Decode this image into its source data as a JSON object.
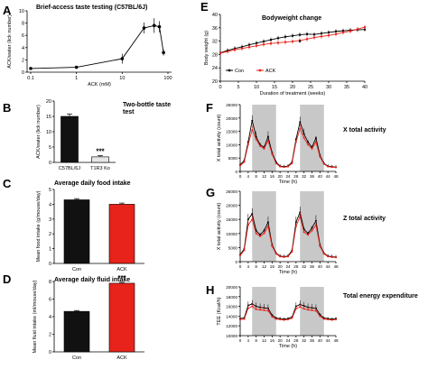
{
  "colors": {
    "con": "#000000",
    "ack": "#e8231b",
    "shade": "#c8c8c8",
    "bar_black": "#111111",
    "bar_red": "#e8231b"
  },
  "panels": {
    "A": {
      "letter": "A"
    },
    "B": {
      "letter": "B"
    },
    "C": {
      "letter": "C"
    },
    "D": {
      "letter": "D"
    },
    "E": {
      "letter": "E"
    },
    "F": {
      "letter": "F"
    },
    "G": {
      "letter": "G"
    },
    "H": {
      "letter": "H"
    }
  },
  "chart_data": [
    {
      "id": "A",
      "type": "line",
      "title": "Brief-access taste testing (C57BL/6J)",
      "xlabel": "ACK (mM)",
      "ylabel": "ACK/water (lick number)",
      "xscale": "log",
      "xticks": [
        "0.1",
        "1",
        "10",
        "100"
      ],
      "ylim": [
        0,
        10
      ],
      "yticks": [
        "0",
        "2",
        "4",
        "6",
        "8",
        "10"
      ],
      "x": [
        0.1,
        1,
        10,
        30,
        50,
        65,
        80
      ],
      "y": [
        0.6,
        0.8,
        2.2,
        7.2,
        7.6,
        7.4,
        3.2
      ],
      "err": [
        0.15,
        0.2,
        0.8,
        0.9,
        1.2,
        0.9,
        0.5
      ]
    },
    {
      "id": "B",
      "type": "bar",
      "title": "Two-bottle taste test",
      "ylabel": "ACK/water (lick number)",
      "categories": [
        "C57BL/6J",
        "T1R3 Ko"
      ],
      "values": [
        15,
        1.8
      ],
      "err": [
        0.8,
        0.4
      ],
      "ylim": [
        0,
        20
      ],
      "yticks": [
        "0",
        "5",
        "10",
        "15",
        "20"
      ],
      "annotation": "***"
    },
    {
      "id": "C",
      "type": "bar",
      "title": "Average daily food intake",
      "ylabel": "Mean food intake (g/mouse/day)",
      "categories": [
        "Con",
        "ACK"
      ],
      "values": [
        4.3,
        4.0
      ],
      "err": [
        0.08,
        0.08
      ],
      "ylim": [
        0,
        5
      ],
      "yticks": [
        "0",
        "1",
        "2",
        "3",
        "4",
        "5"
      ]
    },
    {
      "id": "D",
      "type": "bar",
      "title": "Average daily fluid intake",
      "ylabel": "Mean fluid intake (ml/mouse/day)",
      "categories": [
        "Con",
        "ACK"
      ],
      "values": [
        4.6,
        7.8
      ],
      "err": [
        0.1,
        0.1
      ],
      "ylim": [
        0,
        8
      ],
      "yticks": [
        "0",
        "2",
        "4",
        "6",
        "8"
      ],
      "annotation": "***"
    },
    {
      "id": "E",
      "type": "line",
      "title": "Bodyweight change",
      "xlabel": "Duration of treatment (weeks)",
      "ylabel": "Body weight (g)",
      "xlim": [
        0,
        40
      ],
      "xticks": [
        "0",
        "5",
        "10",
        "15",
        "20",
        "25",
        "30",
        "35",
        "40"
      ],
      "ylim": [
        20,
        40
      ],
      "yticks": [
        "20",
        "24",
        "28",
        "32",
        "36",
        "40"
      ],
      "legend": [
        "Con",
        "ACK"
      ],
      "annotation": "*",
      "series": [
        {
          "name": "Con",
          "x": [
            0,
            2,
            4,
            6,
            8,
            10,
            12,
            14,
            16,
            18,
            20,
            22,
            24,
            26,
            28,
            30,
            32,
            34,
            36,
            38,
            40
          ],
          "y": [
            28.5,
            29.2,
            29.8,
            30.3,
            30.9,
            31.4,
            31.9,
            32.4,
            32.9,
            33.3,
            33.6,
            33.9,
            34.1,
            34.0,
            34.3,
            34.6,
            34.9,
            35.1,
            35.3,
            35.4,
            35.5
          ]
        },
        {
          "name": "ACK",
          "x": [
            0,
            2,
            4,
            6,
            8,
            10,
            12,
            14,
            16,
            18,
            20,
            22,
            24,
            26,
            28,
            30,
            32,
            34,
            36,
            38,
            40
          ],
          "y": [
            28.4,
            28.9,
            29.4,
            29.8,
            30.2,
            30.6,
            31.0,
            31.3,
            31.5,
            31.7,
            31.9,
            32.2,
            32.6,
            33.1,
            33.4,
            33.7,
            34.1,
            34.6,
            35.0,
            35.6,
            36.2
          ]
        }
      ]
    },
    {
      "id": "F",
      "type": "line",
      "title": "X total activity",
      "xlabel": "Time (h)",
      "ylabel": "X total activity (count)",
      "xlim": [
        0,
        48
      ],
      "xticks": [
        "0",
        "4",
        "8",
        "12",
        "16",
        "20",
        "24",
        "28",
        "32",
        "36",
        "40",
        "44",
        "48"
      ],
      "ylim": [
        0,
        25000
      ],
      "yticks": [
        "0",
        "5000",
        "10000",
        "15000",
        "20000",
        "25000"
      ],
      "series": [
        {
          "name": "Con",
          "x": [
            0,
            2,
            4,
            6,
            8,
            10,
            12,
            14,
            16,
            18,
            20,
            22,
            24,
            26,
            28,
            30,
            32,
            34,
            36,
            38,
            40,
            42,
            44,
            46,
            48
          ],
          "y": [
            2500,
            4000,
            11000,
            19000,
            13000,
            10000,
            9000,
            13000,
            7000,
            3500,
            2000,
            1800,
            2000,
            3500,
            12000,
            18500,
            14000,
            11000,
            9000,
            12500,
            6000,
            3000,
            2000,
            1800,
            1600
          ]
        },
        {
          "name": "ACK",
          "x": [
            0,
            2,
            4,
            6,
            8,
            10,
            12,
            14,
            16,
            18,
            20,
            22,
            24,
            26,
            28,
            30,
            32,
            34,
            36,
            38,
            40,
            42,
            44,
            46,
            48
          ],
          "y": [
            2200,
            3500,
            10000,
            15500,
            12000,
            9500,
            8500,
            11500,
            6500,
            3000,
            1800,
            1600,
            1800,
            3000,
            11000,
            16000,
            12500,
            10000,
            8500,
            11000,
            5500,
            2800,
            1800,
            1600,
            1500
          ]
        }
      ]
    },
    {
      "id": "G",
      "type": "line",
      "title": "Z total activity",
      "xlabel": "Time (h)",
      "ylabel": "X total activity (count)",
      "xlim": [
        0,
        48
      ],
      "xticks": [
        "0",
        "4",
        "8",
        "12",
        "16",
        "20",
        "24",
        "28",
        "32",
        "36",
        "40",
        "44",
        "48"
      ],
      "ylim": [
        0,
        25000
      ],
      "yticks": [
        "0",
        "5000",
        "10000",
        "15000",
        "20000",
        "25000"
      ],
      "series": [
        {
          "name": "Con",
          "x": [
            0,
            2,
            4,
            6,
            8,
            10,
            12,
            14,
            16,
            18,
            20,
            22,
            24,
            26,
            28,
            30,
            32,
            34,
            36,
            38,
            40,
            42,
            44,
            46,
            48
          ],
          "y": [
            2500,
            4500,
            15000,
            17000,
            11000,
            9500,
            11000,
            14000,
            6000,
            3000,
            2000,
            1800,
            2000,
            4000,
            14000,
            17500,
            11500,
            10000,
            12000,
            14500,
            6000,
            3000,
            2000,
            1800,
            1600
          ]
        },
        {
          "name": "ACK",
          "x": [
            0,
            2,
            4,
            6,
            8,
            10,
            12,
            14,
            16,
            18,
            20,
            22,
            24,
            26,
            28,
            30,
            32,
            34,
            36,
            38,
            40,
            42,
            44,
            46,
            48
          ],
          "y": [
            2200,
            4000,
            13000,
            15000,
            10000,
            9000,
            10000,
            12500,
            5500,
            2800,
            1800,
            1600,
            1800,
            3500,
            12500,
            16000,
            10500,
            9500,
            11000,
            13000,
            5500,
            2800,
            1800,
            1600,
            1500
          ]
        }
      ]
    },
    {
      "id": "H",
      "type": "line",
      "title": "Total energy expenditure",
      "xlabel": "Time (h)",
      "ylabel": "TEE (Kcal/h)",
      "xlim": [
        0,
        48
      ],
      "xticks": [
        "0",
        "4",
        "8",
        "12",
        "16",
        "20",
        "24",
        "28",
        "32",
        "36",
        "40",
        "44",
        "48"
      ],
      "ylim": [
        10000,
        20000
      ],
      "yticks": [
        "10000",
        "12000",
        "14000",
        "16000",
        "18000",
        "20000"
      ],
      "series": [
        {
          "name": "Con",
          "x": [
            0,
            2,
            4,
            6,
            8,
            10,
            12,
            14,
            16,
            18,
            20,
            22,
            24,
            26,
            28,
            30,
            32,
            34,
            36,
            38,
            40,
            42,
            44,
            46,
            48
          ],
          "y": [
            13500,
            13600,
            16200,
            16500,
            16000,
            15800,
            15700,
            15600,
            14200,
            13600,
            13500,
            13400,
            13500,
            13800,
            16000,
            16400,
            16100,
            15800,
            15700,
            15600,
            14300,
            13600,
            13500,
            13400,
            13500
          ]
        },
        {
          "name": "ACK",
          "x": [
            0,
            2,
            4,
            6,
            8,
            10,
            12,
            14,
            16,
            18,
            20,
            22,
            24,
            26,
            28,
            30,
            32,
            34,
            36,
            38,
            40,
            42,
            44,
            46,
            48
          ],
          "y": [
            13300,
            13400,
            15600,
            16000,
            15400,
            15300,
            15200,
            15100,
            13900,
            13400,
            13300,
            13200,
            13300,
            13600,
            15500,
            15900,
            15500,
            15300,
            15200,
            15100,
            14000,
            13400,
            13300,
            13200,
            13300
          ]
        }
      ]
    }
  ]
}
